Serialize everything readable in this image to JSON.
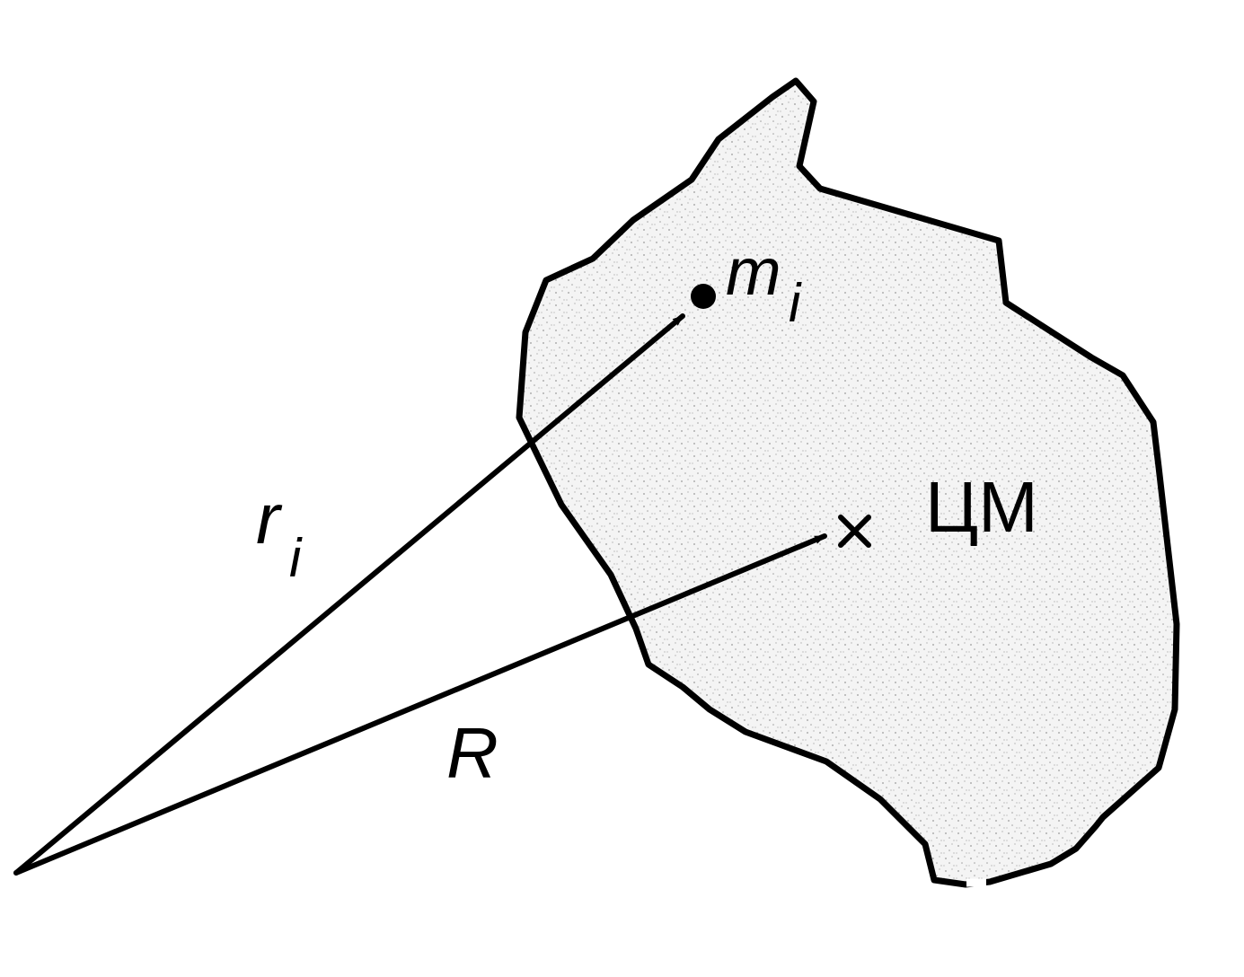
{
  "diagram": {
    "labels": {
      "point_mass": "m",
      "point_mass_subscript": "i",
      "position_vector": "r",
      "position_vector_subscript": "i",
      "cm_vector": "R",
      "center_of_mass": "ЦМ",
      "cm_marker": "×"
    },
    "colors": {
      "ink": "#000000",
      "body_fill": "#f3f3f3",
      "stipple": "#9a9a9a",
      "background": "#ffffff"
    }
  }
}
